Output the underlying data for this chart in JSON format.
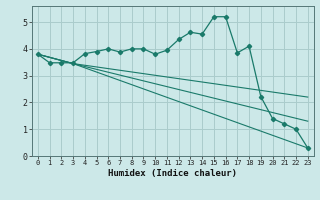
{
  "bg_color": "#cce8e8",
  "grid_color": "#aacccc",
  "line_color": "#1a7a6a",
  "xlabel": "Humidex (Indice chaleur)",
  "xlim": [
    -0.5,
    23.5
  ],
  "ylim": [
    0,
    5.6
  ],
  "yticks": [
    0,
    1,
    2,
    3,
    4,
    5
  ],
  "xtick_labels": [
    "0",
    "1",
    "2",
    "3",
    "4",
    "5",
    "6",
    "7",
    "8",
    "9",
    "10",
    "11",
    "12",
    "13",
    "14",
    "15",
    "16",
    "17",
    "18",
    "19",
    "20",
    "21",
    "22",
    "23"
  ],
  "series1_x": [
    0,
    1,
    2,
    3,
    4,
    5,
    6,
    7,
    8,
    9,
    10,
    11,
    12,
    13,
    14,
    15,
    16,
    17,
    18,
    19,
    20,
    21,
    22,
    23
  ],
  "series1_y": [
    3.8,
    3.48,
    3.48,
    3.48,
    3.82,
    3.9,
    4.0,
    3.88,
    4.0,
    4.0,
    3.8,
    3.95,
    4.35,
    4.62,
    4.55,
    5.2,
    5.2,
    3.85,
    4.1,
    2.22,
    1.4,
    1.2,
    1.0,
    0.3
  ],
  "series2_x": [
    0,
    3,
    23
  ],
  "series2_y": [
    3.8,
    3.45,
    2.2
  ],
  "series3_x": [
    0,
    3,
    23
  ],
  "series3_y": [
    3.8,
    3.45,
    1.3
  ],
  "series4_x": [
    0,
    3,
    23
  ],
  "series4_y": [
    3.8,
    3.45,
    0.3
  ]
}
